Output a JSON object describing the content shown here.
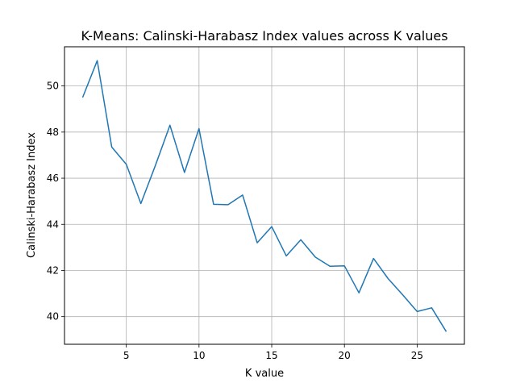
{
  "chart_data": {
    "type": "line",
    "title": "K-Means: Calinski-Harabasz Index values across K values",
    "xlabel": "K value",
    "ylabel": "Calinski-Harabasz Index",
    "xlim": [
      0.75,
      28.25
    ],
    "ylim": [
      38.8,
      51.7
    ],
    "xticks": [
      5,
      10,
      15,
      20,
      25
    ],
    "yticks": [
      40,
      42,
      44,
      46,
      48,
      50
    ],
    "grid": true,
    "line_color": "#1f77b4",
    "x": [
      2,
      3,
      4,
      5,
      6,
      7,
      8,
      9,
      10,
      11,
      12,
      13,
      14,
      15,
      16,
      17,
      18,
      19,
      20,
      21,
      22,
      23,
      24,
      25,
      26,
      27
    ],
    "y": [
      49.5,
      51.1,
      47.35,
      46.6,
      44.9,
      46.55,
      48.3,
      46.25,
      48.15,
      44.87,
      44.85,
      45.27,
      43.2,
      43.9,
      42.63,
      43.33,
      42.58,
      42.18,
      42.2,
      41.03,
      42.52,
      41.65,
      40.95,
      40.22,
      40.38,
      39.35
    ]
  }
}
